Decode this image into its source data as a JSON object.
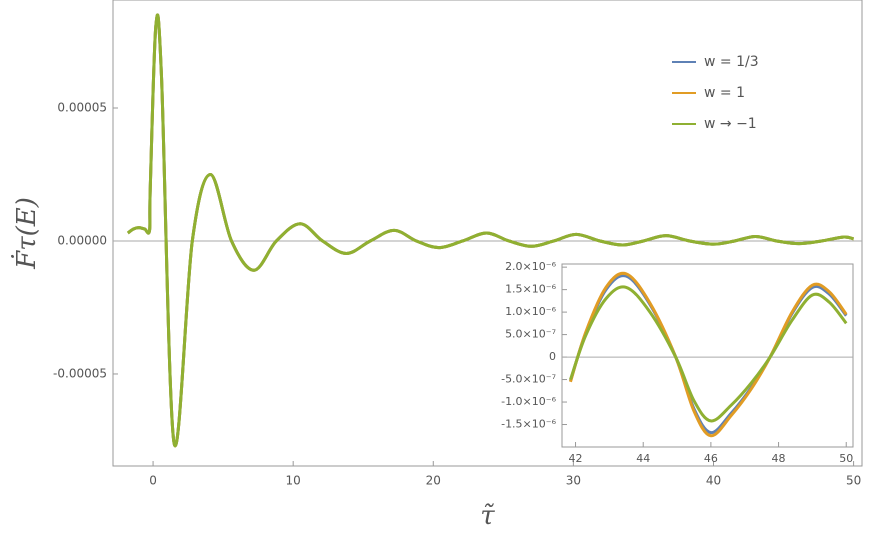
{
  "chart_data": [
    {
      "type": "line",
      "xlabel": "τ̃",
      "ylabel": "Ḟτ(E)",
      "x": [
        -1.8,
        -1.4,
        -1,
        -0.6,
        -0.25,
        -0.2,
        0.2,
        0.6,
        1.5,
        2.8,
        4.1,
        5.6,
        7.2,
        8.8,
        10.5,
        12.1,
        13.8,
        15.5,
        17.2,
        18.8,
        20.4,
        22.1,
        23.8,
        25.4,
        27,
        28.6,
        30.2,
        31.9,
        33.5,
        35,
        36.6,
        38.3,
        40,
        41.5,
        43,
        44.5,
        46.1,
        47.7,
        49.3,
        50
      ],
      "series": [
        {
          "name": "w = 1/3",
          "color": "#5e81b5",
          "values": [
            3e-06,
            4.5e-06,
            5e-06,
            4.5e-06,
            4e-06,
            2e-05,
            8.1e-05,
            6.2e-05,
            -7.6e-05,
            0,
            2.5e-05,
            0,
            -1.1e-05,
            0,
            6.5e-06,
            0,
            -4.7e-06,
            0,
            4e-06,
            0,
            -2.5e-06,
            0,
            3e-06,
            0,
            -2e-06,
            0,
            2.5e-06,
            0,
            -1.5e-06,
            0,
            2e-06,
            0,
            -1.2e-06,
            0,
            1.7e-06,
            0,
            -1e-06,
            0,
            1.5e-06,
            8e-07
          ]
        },
        {
          "name": "w = 1",
          "color": "#e19c24",
          "values": [
            3e-06,
            4.5e-06,
            5e-06,
            4.5e-06,
            4e-06,
            2e-05,
            8.1e-05,
            6.2e-05,
            -7.6e-05,
            0,
            2.5e-05,
            0,
            -1.1e-05,
            0,
            6.5e-06,
            0,
            -4.7e-06,
            0,
            4e-06,
            0,
            -2.5e-06,
            0,
            3e-06,
            0,
            -2e-06,
            0,
            2.5e-06,
            0,
            -1.5e-06,
            0,
            2e-06,
            0,
            -1.2e-06,
            0,
            1.7e-06,
            0,
            -1e-06,
            0,
            1.5e-06,
            8e-07
          ]
        },
        {
          "name": "w → −1",
          "color": "#8fb032",
          "values": [
            3e-06,
            4.5e-06,
            5e-06,
            4.5e-06,
            4e-06,
            2e-05,
            8.1e-05,
            6.2e-05,
            -7.6e-05,
            0,
            2.5e-05,
            0,
            -1.1e-05,
            0,
            6.5e-06,
            0,
            -4.7e-06,
            0,
            4e-06,
            0,
            -2.5e-06,
            0,
            3e-06,
            0,
            -2e-06,
            0,
            2.5e-06,
            0,
            -1.5e-06,
            0,
            2e-06,
            0,
            -1.2e-06,
            0,
            1.7e-06,
            0,
            -1e-06,
            0,
            1.5e-06,
            8e-07
          ]
        }
      ],
      "xlim": [
        -2.86,
        50.6
      ],
      "ylim": [
        -8.46e-05,
        9.06e-05
      ],
      "xticks": [
        0,
        10,
        20,
        30,
        40,
        50
      ],
      "yticks": [
        {
          "value": 5e-05,
          "label": "0.00005"
        },
        {
          "value": 0,
          "label": "0.00000"
        },
        {
          "value": -5e-05,
          "label": "-0.00005"
        }
      ],
      "legend": "upper right"
    },
    {
      "type": "line",
      "x": [
        41.85,
        42.3,
        42.9,
        43.5,
        44.2,
        44.96,
        45.5,
        46,
        46.6,
        47.2,
        47.75,
        48.4,
        49,
        49.5,
        50
      ],
      "series": [
        {
          "color": "#5e81b5",
          "values": [
            -5.3e-07,
            5.3e-07,
            1.5e-06,
            1.8e-06,
            1.17e-06,
            0,
            -1.15e-06,
            -1.68e-06,
            -1.25e-06,
            -6.7e-07,
            0,
            9.7e-07,
            1.55e-06,
            1.4e-06,
            9.2e-07
          ]
        },
        {
          "color": "#e19c24",
          "values": [
            -5.5e-07,
            5.5e-07,
            1.55e-06,
            1.85e-06,
            1.2e-06,
            0,
            -1.2e-06,
            -1.75e-06,
            -1.3e-06,
            -7e-07,
            0,
            1e-06,
            1.6e-06,
            1.45e-06,
            9.5e-07
          ]
        },
        {
          "color": "#8fb032",
          "values": [
            -5e-07,
            4.8e-07,
            1.3e-06,
            1.55e-06,
            1e-06,
            0,
            -9.7e-07,
            -1.42e-06,
            -1.07e-06,
            -5.7e-07,
            0,
            8.2e-07,
            1.38e-06,
            1.22e-06,
            7.5e-07
          ]
        }
      ],
      "xlim": [
        41.6,
        50.2
      ],
      "ylim": [
        -2e-06,
        2.07e-06
      ],
      "xticks": [
        42,
        44,
        46,
        48,
        50
      ],
      "yticks": [
        {
          "value": 2e-06,
          "label": "2.0×10⁻⁶"
        },
        {
          "value": 1.5e-06,
          "label": "1.5×10⁻⁶"
        },
        {
          "value": 1e-06,
          "label": "1.0×10⁻⁶"
        },
        {
          "value": 5e-07,
          "label": "5.0×10⁻⁷"
        },
        0,
        {
          "value": -5e-07,
          "label": "-5.0×10⁻⁷"
        },
        {
          "value": -1e-06,
          "label": "-1.0×10⁻⁶"
        },
        {
          "value": -1.5e-06,
          "label": "-1.5×10⁻⁶"
        }
      ]
    }
  ]
}
